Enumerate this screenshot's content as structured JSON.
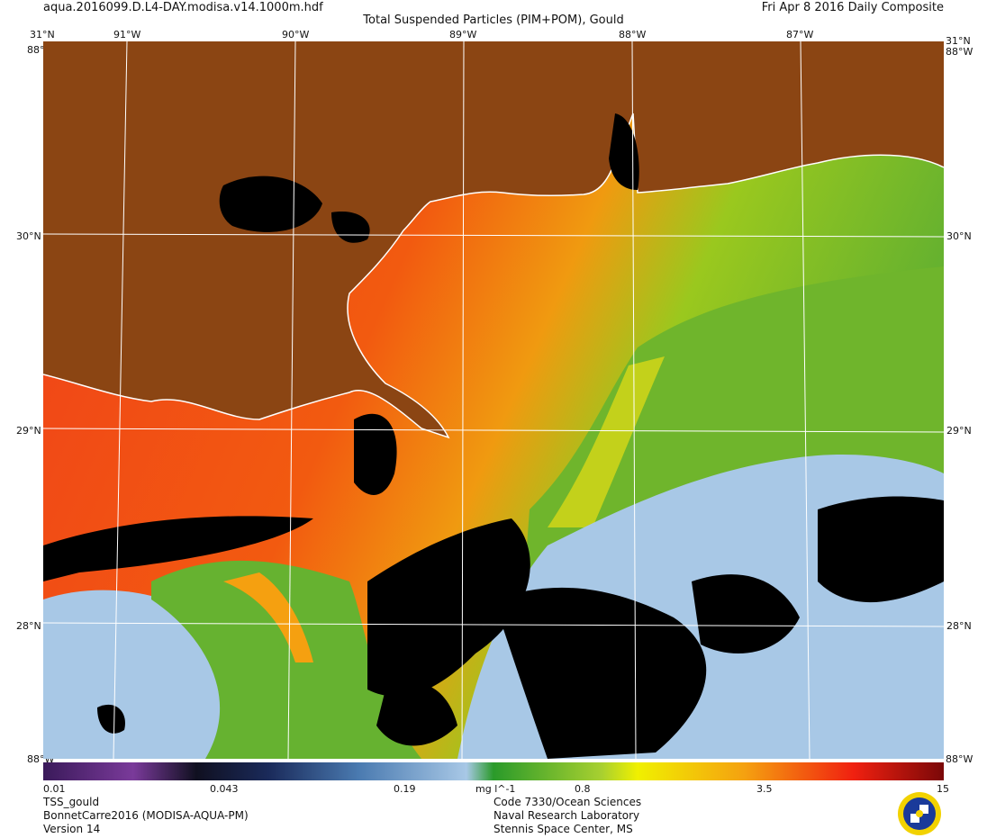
{
  "header": {
    "filename": "aqua.2016099.D.L4-DAY.modisa.v14.1000m.hdf",
    "title": "Total Suspended Particles (PIM+POM), Gould",
    "date": "Fri Apr  8 2016 Daily Composite"
  },
  "axes": {
    "top_lon_labels": [
      "31°N",
      "91°W",
      "90°W",
      "89°W",
      "88°W",
      "87°W",
      "31°N"
    ],
    "lat_labels": [
      "30°N",
      "29°N",
      "28°N"
    ],
    "corner_lon_label": "88°W"
  },
  "map": {
    "land_color": "#8b4513",
    "nodata_color": "#000000",
    "coast_color": "#ffffff",
    "graticule_color": "#ffffff"
  },
  "colorbar": {
    "tick_labels": [
      "0.01",
      "0.043",
      "0.19",
      "mg l^-1",
      "0.8",
      "3.5",
      "15"
    ],
    "scale": "log",
    "range": [
      0.01,
      15
    ]
  },
  "footer": {
    "left": [
      "TSS_gould",
      "BonnetCarre2016 (MODISA-AQUA-PM)",
      "Version 14"
    ],
    "right": [
      "Code 7330/Ocean Sciences",
      "Naval Research Laboratory",
      "Stennis Space Center, MS"
    ]
  }
}
